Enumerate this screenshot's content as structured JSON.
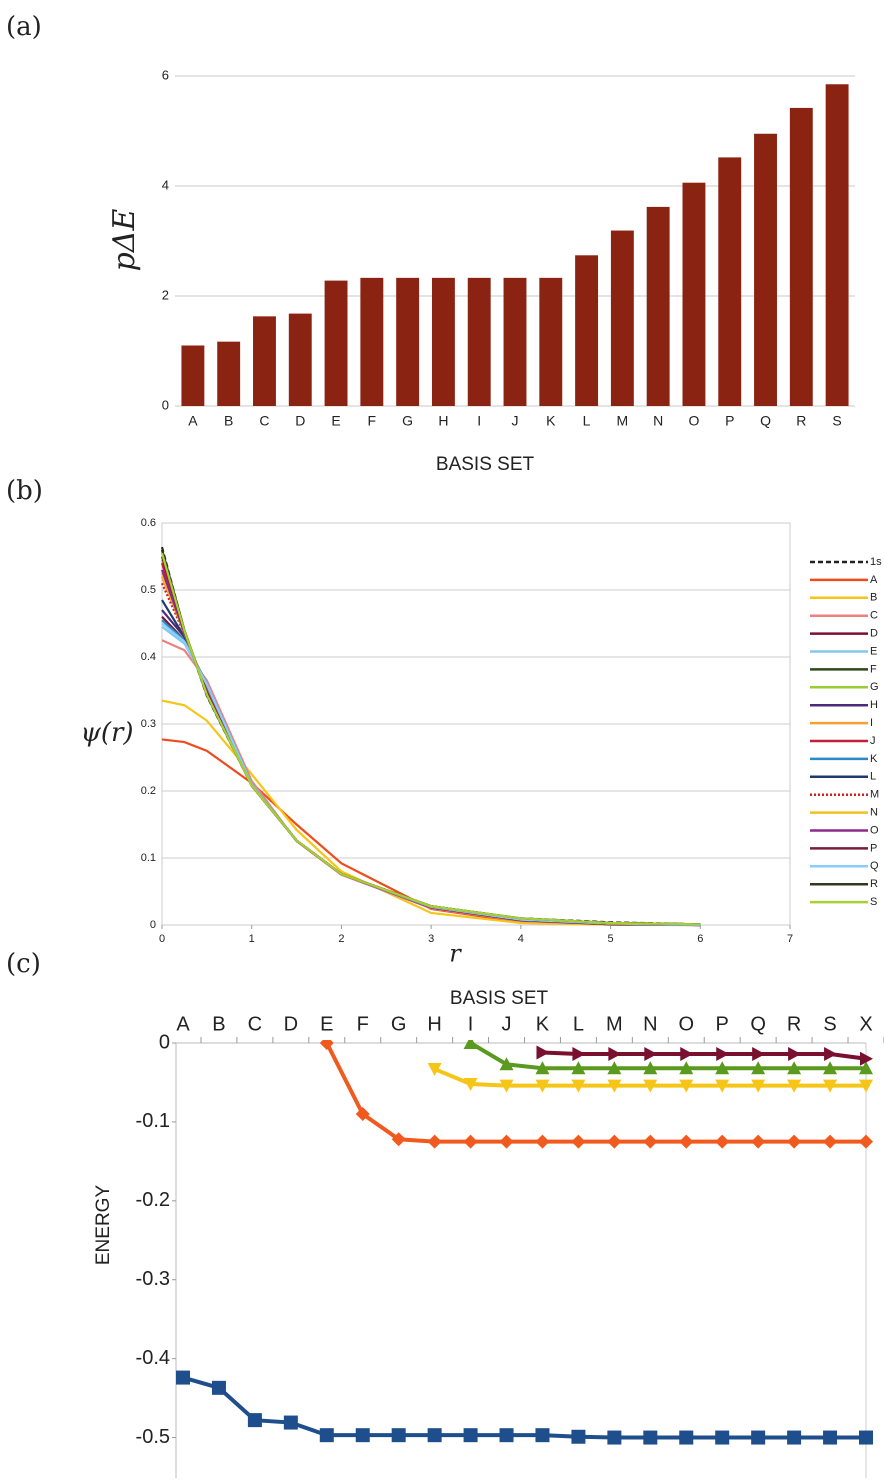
{
  "chart_data": [
    {
      "type": "bar",
      "label": "(a)",
      "ylabel": "pΔE",
      "xlabel": "BASIS SET",
      "color": "#8b2312",
      "grid": true,
      "categories": [
        "A",
        "B",
        "C",
        "D",
        "E",
        "F",
        "G",
        "H",
        "I",
        "J",
        "K",
        "L",
        "M",
        "N",
        "O",
        "P",
        "Q",
        "R",
        "S"
      ],
      "values": [
        1.1,
        1.17,
        1.63,
        1.68,
        2.28,
        2.33,
        2.33,
        2.33,
        2.33,
        2.33,
        2.33,
        2.74,
        3.19,
        3.62,
        4.06,
        4.52,
        4.95,
        5.42,
        5.85
      ],
      "ylim": [
        0,
        6
      ],
      "yticks": [
        0,
        2,
        4,
        6
      ]
    },
    {
      "type": "line",
      "label": "(b)",
      "ylabel": "ψ(r)",
      "xlabel": "r",
      "grid": true,
      "legend": "right",
      "x": [
        0,
        0.25,
        0.5,
        1,
        1.5,
        2,
        3,
        4,
        5,
        6
      ],
      "xlim": [
        0,
        7
      ],
      "xticks": [
        0,
        1,
        2,
        3,
        4,
        5,
        6,
        7
      ],
      "ylim": [
        0,
        0.6
      ],
      "yticks": [
        0,
        0.1,
        0.2,
        0.3,
        0.4,
        0.5,
        0.6
      ],
      "series": [
        {
          "name": "1s",
          "color": "#222222",
          "dash": "dashed",
          "values": [
            0.564,
            0.439,
            0.342,
            0.208,
            0.126,
            0.076,
            0.028,
            0.01,
            0.004,
            0.001
          ]
        },
        {
          "name": "A",
          "color": "#ee4b1e",
          "values": [
            0.277,
            0.273,
            0.26,
            0.212,
            0.15,
            0.092,
            0.024,
            0.004,
            0.0005,
            0
          ]
        },
        {
          "name": "B",
          "color": "#f5c518",
          "values": [
            0.335,
            0.328,
            0.305,
            0.225,
            0.142,
            0.08,
            0.018,
            0.003,
            0.0003,
            0
          ]
        },
        {
          "name": "C",
          "color": "#f08080",
          "values": [
            0.425,
            0.41,
            0.365,
            0.215,
            0.125,
            0.075,
            0.025,
            0.006,
            0.001,
            0
          ]
        },
        {
          "name": "D",
          "color": "#7b1030",
          "values": [
            0.46,
            0.425,
            0.36,
            0.21,
            0.126,
            0.076,
            0.026,
            0.007,
            0.001,
            0
          ]
        },
        {
          "name": "E",
          "color": "#87c5eb",
          "values": [
            0.445,
            0.42,
            0.36,
            0.21,
            0.126,
            0.076,
            0.027,
            0.008,
            0.002,
            0
          ]
        },
        {
          "name": "F",
          "color": "#2f4a1a",
          "values": [
            0.56,
            0.44,
            0.345,
            0.208,
            0.126,
            0.076,
            0.028,
            0.009,
            0.003,
            0.001
          ]
        },
        {
          "name": "G",
          "color": "#9acd32",
          "values": [
            0.545,
            0.438,
            0.346,
            0.208,
            0.126,
            0.076,
            0.028,
            0.009,
            0.003,
            0.001
          ]
        },
        {
          "name": "H",
          "color": "#4b2a7b",
          "values": [
            0.47,
            0.43,
            0.355,
            0.209,
            0.126,
            0.076,
            0.027,
            0.008,
            0.002,
            0
          ]
        },
        {
          "name": "I",
          "color": "#f5a030",
          "values": [
            0.52,
            0.435,
            0.35,
            0.208,
            0.126,
            0.076,
            0.028,
            0.009,
            0.002,
            0.001
          ]
        },
        {
          "name": "J",
          "color": "#c0203a",
          "values": [
            0.54,
            0.437,
            0.347,
            0.208,
            0.126,
            0.076,
            0.028,
            0.009,
            0.003,
            0.001
          ]
        },
        {
          "name": "K",
          "color": "#2a8ac8",
          "values": [
            0.455,
            0.425,
            0.358,
            0.21,
            0.126,
            0.076,
            0.027,
            0.008,
            0.002,
            0
          ]
        },
        {
          "name": "L",
          "color": "#1e3a6e",
          "values": [
            0.485,
            0.43,
            0.353,
            0.209,
            0.126,
            0.076,
            0.027,
            0.008,
            0.002,
            0
          ]
        },
        {
          "name": "M",
          "color": "#d02020",
          "dash": "dotted",
          "values": [
            0.51,
            0.434,
            0.351,
            0.208,
            0.126,
            0.076,
            0.028,
            0.009,
            0.002,
            0.001
          ]
        },
        {
          "name": "N",
          "color": "#f0c020",
          "values": [
            0.525,
            0.435,
            0.35,
            0.208,
            0.126,
            0.076,
            0.028,
            0.009,
            0.003,
            0.001
          ]
        },
        {
          "name": "O",
          "color": "#8b2a8b",
          "values": [
            0.53,
            0.436,
            0.349,
            0.208,
            0.126,
            0.076,
            0.028,
            0.009,
            0.003,
            0.001
          ]
        },
        {
          "name": "P",
          "color": "#7a1c3c",
          "values": [
            0.55,
            0.438,
            0.346,
            0.208,
            0.126,
            0.076,
            0.028,
            0.009,
            0.003,
            0.001
          ]
        },
        {
          "name": "Q",
          "color": "#87cefa",
          "values": [
            0.45,
            0.423,
            0.359,
            0.21,
            0.126,
            0.076,
            0.027,
            0.008,
            0.002,
            0
          ]
        },
        {
          "name": "R",
          "color": "#2e3a1a",
          "values": [
            0.56,
            0.439,
            0.343,
            0.208,
            0.126,
            0.076,
            0.028,
            0.01,
            0.003,
            0.001
          ]
        },
        {
          "name": "S",
          "color": "#a8d030",
          "values": [
            0.555,
            0.439,
            0.344,
            0.208,
            0.126,
            0.076,
            0.028,
            0.01,
            0.003,
            0.001
          ]
        }
      ]
    },
    {
      "type": "marker-line",
      "label": "(c)",
      "ylabel": "ENERGY",
      "xlabel": "BASIS SET",
      "xaxis": "top",
      "categories": [
        "A",
        "B",
        "C",
        "D",
        "E",
        "F",
        "G",
        "H",
        "I",
        "J",
        "K",
        "L",
        "M",
        "N",
        "O",
        "P",
        "Q",
        "R",
        "S",
        "X"
      ],
      "ylim": [
        -0.55,
        0
      ],
      "yticks": [
        0,
        -0.1,
        -0.2,
        -0.3,
        -0.4,
        -0.5
      ],
      "series": [
        {
          "color": "#1f4e8c",
          "marker": "square",
          "values": [
            -0.424,
            -0.437,
            -0.478,
            -0.481,
            -0.497,
            -0.497,
            -0.497,
            -0.497,
            -0.497,
            -0.497,
            -0.497,
            -0.499,
            -0.5,
            -0.5,
            -0.5,
            -0.5,
            -0.5,
            -0.5,
            -0.5,
            -0.5
          ]
        },
        {
          "color": "#f05a1e",
          "marker": "diamond",
          "values": [
            null,
            null,
            null,
            null,
            0,
            -0.09,
            -0.122,
            -0.125,
            -0.125,
            -0.125,
            -0.125,
            -0.125,
            -0.125,
            -0.125,
            -0.125,
            -0.125,
            -0.125,
            -0.125,
            -0.125,
            -0.125
          ]
        },
        {
          "color": "#f5c518",
          "marker": "triangle-down",
          "values": [
            null,
            null,
            null,
            null,
            null,
            null,
            null,
            -0.033,
            -0.052,
            -0.054,
            -0.054,
            -0.054,
            -0.054,
            -0.054,
            -0.054,
            -0.054,
            -0.054,
            -0.054,
            -0.054,
            -0.054
          ]
        },
        {
          "color": "#5a9a1e",
          "marker": "triangle-up",
          "values": [
            null,
            null,
            null,
            null,
            null,
            null,
            null,
            null,
            0,
            -0.027,
            -0.032,
            -0.032,
            -0.032,
            -0.032,
            -0.032,
            -0.032,
            -0.032,
            -0.032,
            -0.032,
            -0.032
          ]
        },
        {
          "color": "#7a1030",
          "marker": "triangle-right",
          "values": [
            null,
            null,
            null,
            null,
            null,
            null,
            null,
            null,
            null,
            null,
            -0.012,
            -0.014,
            -0.014,
            -0.014,
            -0.014,
            -0.014,
            -0.014,
            -0.014,
            -0.014,
            -0.02
          ]
        }
      ]
    }
  ]
}
